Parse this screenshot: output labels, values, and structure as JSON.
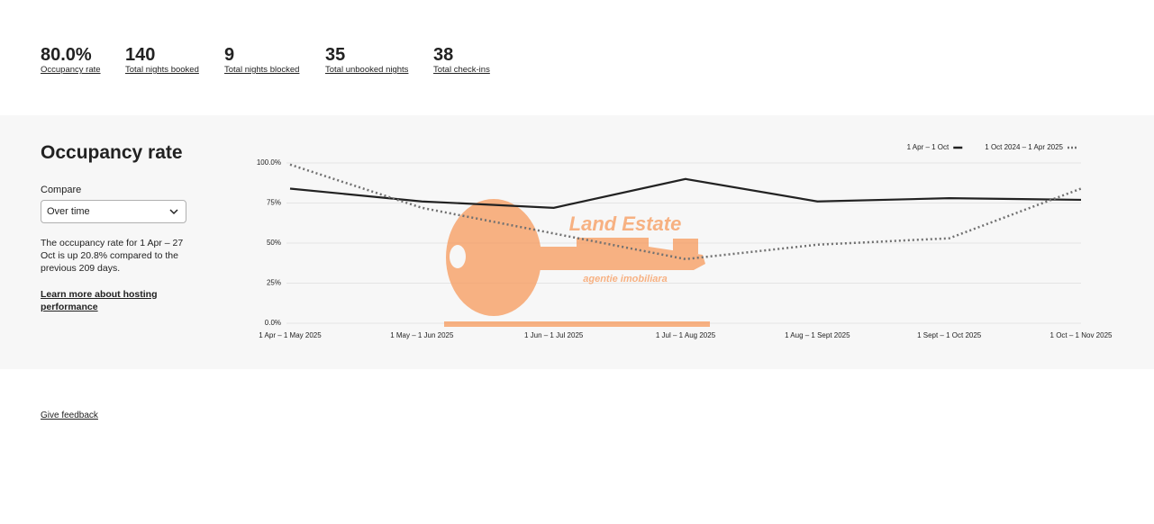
{
  "stats": [
    {
      "value": "80.0%",
      "label": "Occupancy rate"
    },
    {
      "value": "140",
      "label": "Total nights booked"
    },
    {
      "value": "9",
      "label": "Total nights blocked"
    },
    {
      "value": "35",
      "label": "Total unbooked nights"
    },
    {
      "value": "38",
      "label": "Total check-ins"
    }
  ],
  "section": {
    "title": "Occupancy rate",
    "compare_label": "Compare",
    "compare_value": "Over time",
    "description": "The occupancy rate for 1 Apr – 27 Oct is up 20.8% compared to the previous 209 days.",
    "link": "Learn more about hosting performance"
  },
  "chart_data": {
    "type": "line",
    "categories": [
      "1 Apr – 1 May 2025",
      "1 May – 1 Jun 2025",
      "1 Jun – 1 Jul 2025",
      "1 Jul – 1 Aug 2025",
      "1 Aug – 1 Sept 2025",
      "1 Sept – 1 Oct 2025",
      "1 Oct – 1 Nov 2025"
    ],
    "series": [
      {
        "name": "1 Apr – 1 Oct",
        "color": "#222222",
        "style": "solid",
        "values": [
          84,
          76,
          72,
          90,
          76,
          78,
          77
        ]
      },
      {
        "name": "1 Oct 2024 – 1 Apr 2025",
        "color": "#717171",
        "style": "dotted",
        "values": [
          99,
          72,
          56,
          40,
          49,
          53,
          84
        ]
      }
    ],
    "ylim": [
      0,
      100
    ],
    "yticks": [
      {
        "value": 0,
        "label": "0.0%"
      },
      {
        "value": 25,
        "label": "25%"
      },
      {
        "value": 50,
        "label": "50%"
      },
      {
        "value": 75,
        "label": "75%"
      },
      {
        "value": 100,
        "label": "100.0%"
      }
    ],
    "grid": true,
    "legend": "top-right"
  },
  "watermark": {
    "title": "Land Estate",
    "subtitle": "agentie imobiliara"
  },
  "footer": {
    "feedback": "Give feedback"
  }
}
